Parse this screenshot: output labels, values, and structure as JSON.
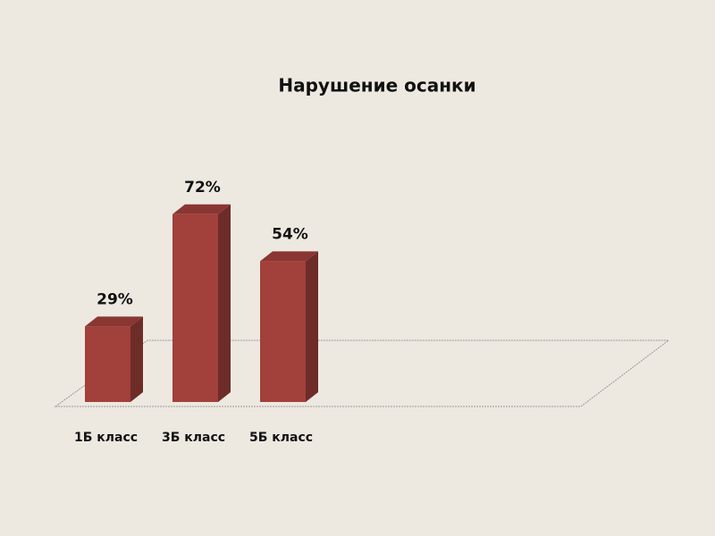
{
  "chart_data": {
    "type": "bar3d",
    "title": "Нарушение осанки",
    "categories": [
      "1Б класс",
      "3Б класс",
      "5Б класс"
    ],
    "values": [
      29,
      72,
      54
    ],
    "value_labels": [
      "29%",
      "72%",
      "54%"
    ],
    "color": "#a2403c"
  }
}
